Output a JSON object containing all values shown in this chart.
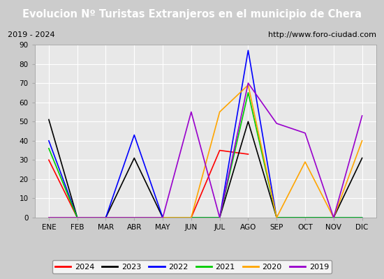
{
  "title": "Evolucion Nº Turistas Extranjeros en el municipio de Chera",
  "subtitle_left": "2019 - 2024",
  "subtitle_right": "http://www.foro-ciudad.com",
  "months": [
    "ENE",
    "FEB",
    "MAR",
    "ABR",
    "MAY",
    "JUN",
    "JUL",
    "AGO",
    "SEP",
    "OCT",
    "NOV",
    "DIC"
  ],
  "series": {
    "2024": [
      30,
      0,
      0,
      0,
      0,
      0,
      35,
      33,
      null,
      null,
      null,
      null
    ],
    "2023": [
      51,
      0,
      0,
      31,
      0,
      0,
      0,
      50,
      0,
      0,
      0,
      31
    ],
    "2022": [
      40,
      0,
      0,
      43,
      0,
      0,
      0,
      87,
      0,
      0,
      0,
      0
    ],
    "2021": [
      36,
      0,
      0,
      0,
      0,
      0,
      0,
      65,
      0,
      0,
      0,
      0
    ],
    "2020": [
      0,
      0,
      0,
      0,
      0,
      0,
      55,
      69,
      0,
      29,
      0,
      40
    ],
    "2019": [
      0,
      0,
      0,
      0,
      0,
      55,
      0,
      70,
      49,
      44,
      0,
      53
    ]
  },
  "colors": {
    "2024": "#ff0000",
    "2023": "#000000",
    "2022": "#0000ff",
    "2021": "#00cc00",
    "2020": "#ffa500",
    "2019": "#9900cc"
  },
  "ylim": [
    0,
    90
  ],
  "yticks": [
    0,
    10,
    20,
    30,
    40,
    50,
    60,
    70,
    80,
    90
  ],
  "title_bg_color": "#5599ee",
  "subtitle_bg_color": "#ffffff",
  "outer_bg_color": "#cccccc",
  "plot_bg_color": "#e8e8e8"
}
